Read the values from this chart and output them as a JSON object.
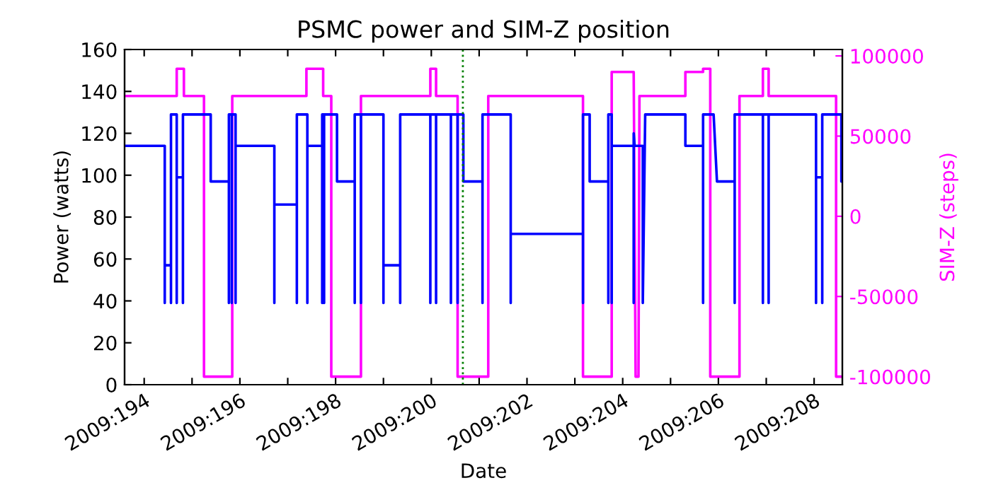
{
  "chart_data": {
    "type": "line",
    "title": "PSMC power and SIM-Z position",
    "xlabel": "Date",
    "ylabel": "Power (watts)",
    "y2label": "SIM-Z (steps)",
    "xlim": [
      "2009-07-12T14:10",
      "2009-07-27T14:10"
    ],
    "xticks": [
      {
        "value": "2009-07-13",
        "label": "2009:194"
      },
      {
        "value": "2009-07-14",
        "label": null
      },
      {
        "value": "2009-07-15",
        "label": "2009:196"
      },
      {
        "value": "2009-07-16",
        "label": null
      },
      {
        "value": "2009-07-17",
        "label": "2009:198"
      },
      {
        "value": "2009-07-18",
        "label": null
      },
      {
        "value": "2009-07-19",
        "label": "2009:200"
      },
      {
        "value": "2009-07-20",
        "label": null
      },
      {
        "value": "2009-07-21",
        "label": "2009:202"
      },
      {
        "value": "2009-07-22",
        "label": null
      },
      {
        "value": "2009-07-23",
        "label": "2009:204"
      },
      {
        "value": "2009-07-24",
        "label": null
      },
      {
        "value": "2009-07-25",
        "label": "2009:206"
      },
      {
        "value": "2009-07-26",
        "label": null
      },
      {
        "value": "2009-07-27",
        "label": "2009:208"
      }
    ],
    "ylim": [
      0,
      160
    ],
    "yticks": [
      0,
      20,
      40,
      60,
      80,
      100,
      120,
      140,
      160
    ],
    "y2lim": [
      -105000,
      104000
    ],
    "y2ticks": [
      -100000,
      -50000,
      0,
      50000,
      100000
    ],
    "grid": false,
    "legend": false,
    "line_style": "solid",
    "marker": "none",
    "ref_lines": [
      {
        "axis": "x",
        "value": "2009-07-19T15:50",
        "color": "#008000",
        "line_style": "dotted"
      }
    ],
    "series": [
      {
        "color": "#0000ff",
        "x": [
          "2009-07-12T14:10",
          "2009-07-13T10:19",
          "2009-07-13T10:19",
          "2009-07-13T10:19",
          "2009-07-13T13:26",
          "2009-07-13T13:26",
          "2009-07-13T13:26",
          "2009-07-13T16:19",
          "2009-07-13T16:19",
          "2009-07-13T16:19",
          "2009-07-13T19:26",
          "2009-07-13T19:26",
          "2009-07-13T19:26",
          "2009-07-14T09:22",
          "2009-07-14T09:22",
          "2009-07-14T18:29",
          "2009-07-14T18:29",
          "2009-07-14T18:29",
          "2009-07-14T19:55",
          "2009-07-14T19:55",
          "2009-07-14T19:55",
          "2009-07-14T21:50",
          "2009-07-14T21:50",
          "2009-07-14T21:50",
          "2009-07-15T17:17",
          "2009-07-15T17:17",
          "2009-07-15T17:17",
          "2009-07-16T04:34",
          "2009-07-16T04:34",
          "2009-07-16T04:34",
          "2009-07-16T09:50",
          "2009-07-16T09:50",
          "2009-07-16T09:50",
          "2009-07-16T17:17",
          "2009-07-16T17:17",
          "2009-07-16T17:17",
          "2009-07-16T18:14",
          "2009-07-16T18:14",
          "2009-07-16T18:14",
          "2009-07-17T00:43",
          "2009-07-17T00:43",
          "2009-07-17T09:36",
          "2009-07-17T09:36",
          "2009-07-17T09:36",
          "2009-07-17T12:43",
          "2009-07-17T12:43",
          "2009-07-17T12:43",
          "2009-07-18T00:00",
          "2009-07-18T00:00",
          "2009-07-18T00:00",
          "2009-07-18T08:24",
          "2009-07-18T08:24",
          "2009-07-18T08:24",
          "2009-07-18T23:31",
          "2009-07-18T23:31",
          "2009-07-18T23:31",
          "2009-07-19T02:24",
          "2009-07-19T02:24",
          "2009-07-19T02:24",
          "2009-07-19T09:50",
          "2009-07-19T09:50",
          "2009-07-19T09:50",
          "2009-07-19T13:12",
          "2009-07-19T13:12",
          "2009-07-19T13:12",
          "2009-07-19T16:05",
          "2009-07-19T16:05",
          "2009-07-20T01:41",
          "2009-07-20T01:41",
          "2009-07-20T01:41",
          "2009-07-20T15:50",
          "2009-07-20T15:50",
          "2009-07-20T15:50",
          "2009-07-22T04:05",
          "2009-07-22T04:05",
          "2009-07-22T04:05",
          "2009-07-22T07:26",
          "2009-07-22T07:26",
          "2009-07-22T16:48",
          "2009-07-22T16:48",
          "2009-07-22T16:48",
          "2009-07-22T18:29",
          "2009-07-22T18:29",
          "2009-07-22T18:29",
          "2009-07-23T05:31",
          "2009-07-23T05:31",
          "2009-07-23T05:31",
          "2009-07-23T06:00",
          "2009-07-23T10:05",
          "2009-07-23T10:05",
          "2009-07-23T11:17",
          "2009-07-24T07:26",
          "2009-07-24T07:26",
          "2009-07-24T16:19",
          "2009-07-24T16:19",
          "2009-07-24T16:19",
          "2009-07-24T21:36",
          "2009-07-24T23:17",
          "2009-07-25T08:10",
          "2009-07-25T08:10",
          "2009-07-25T08:10",
          "2009-07-25T22:19",
          "2009-07-25T22:19",
          "2009-07-25T22:19",
          "2009-07-26T01:12",
          "2009-07-26T01:12",
          "2009-07-26T01:12",
          "2009-07-27T00:58",
          "2009-07-27T00:58",
          "2009-07-27T00:58",
          "2009-07-27T04:05",
          "2009-07-27T04:05",
          "2009-07-27T04:05",
          "2009-07-27T13:41",
          "2009-07-27T13:41",
          "2009-07-27T14:10"
        ],
        "values": [
          114,
          114,
          39,
          57,
          57,
          39,
          129,
          129,
          39,
          99,
          99,
          39,
          129,
          129,
          97,
          97,
          39,
          129,
          129,
          39,
          129,
          129,
          39,
          114,
          114,
          39,
          86,
          86,
          39,
          129,
          129,
          39,
          114,
          114,
          39,
          129,
          129,
          39,
          129,
          129,
          97,
          97,
          39,
          129,
          129,
          39,
          129,
          129,
          39,
          57,
          57,
          39,
          129,
          129,
          39,
          129,
          129,
          39,
          129,
          129,
          39,
          129,
          129,
          39,
          129,
          129,
          97,
          97,
          39,
          129,
          129,
          39,
          72,
          72,
          39,
          129,
          129,
          97,
          97,
          39,
          129,
          129,
          39,
          114,
          114,
          39,
          120,
          114,
          114,
          39,
          129,
          129,
          114,
          114,
          39,
          129,
          129,
          97,
          97,
          39,
          129,
          129,
          39,
          129,
          129,
          39,
          129,
          129,
          39,
          99,
          99,
          39,
          129,
          129,
          97,
          97
        ]
      },
      {
        "color": "#ff00ff",
        "axis": "y2",
        "x": [
          "2009-07-12T14:10",
          "2009-07-13T16:19",
          "2009-07-13T16:19",
          "2009-07-13T19:55",
          "2009-07-13T19:55",
          "2009-07-14T06:00",
          "2009-07-14T06:00",
          "2009-07-14T20:10",
          "2009-07-14T20:10",
          "2009-07-16T09:22",
          "2009-07-16T09:22",
          "2009-07-16T17:46",
          "2009-07-16T17:46",
          "2009-07-16T21:50",
          "2009-07-16T21:50",
          "2009-07-17T12:43",
          "2009-07-17T12:43",
          "2009-07-18T23:31",
          "2009-07-18T23:31",
          "2009-07-19T02:24",
          "2009-07-19T02:24",
          "2009-07-19T13:12",
          "2009-07-19T13:12",
          "2009-07-20T04:34",
          "2009-07-20T04:34",
          "2009-07-22T04:05",
          "2009-07-22T04:05",
          "2009-07-22T18:29",
          "2009-07-22T18:29",
          "2009-07-23T05:31",
          "2009-07-23T06:29",
          "2009-07-23T07:55",
          "2009-07-23T08:24",
          "2009-07-24T07:26",
          "2009-07-24T07:26",
          "2009-07-24T16:19",
          "2009-07-24T16:19",
          "2009-07-24T19:55",
          "2009-07-24T19:55",
          "2009-07-25T10:34",
          "2009-07-25T10:34",
          "2009-07-25T22:19",
          "2009-07-25T22:19",
          "2009-07-26T01:12",
          "2009-07-26T01:12",
          "2009-07-27T11:02",
          "2009-07-27T11:02",
          "2009-07-27T14:10"
        ],
        "values": [
          75000,
          75000,
          92000,
          92000,
          75000,
          75000,
          -100000,
          -100000,
          75000,
          75000,
          92000,
          92000,
          75000,
          75000,
          -100000,
          -100000,
          75000,
          75000,
          92000,
          92000,
          75000,
          75000,
          -100000,
          -100000,
          75000,
          75000,
          -100000,
          -100000,
          90000,
          90000,
          -100000,
          -100000,
          75000,
          75000,
          90000,
          90000,
          92000,
          92000,
          -100000,
          -100000,
          75000,
          75000,
          92000,
          92000,
          75000,
          75000,
          -100000,
          -100000
        ]
      }
    ]
  }
}
